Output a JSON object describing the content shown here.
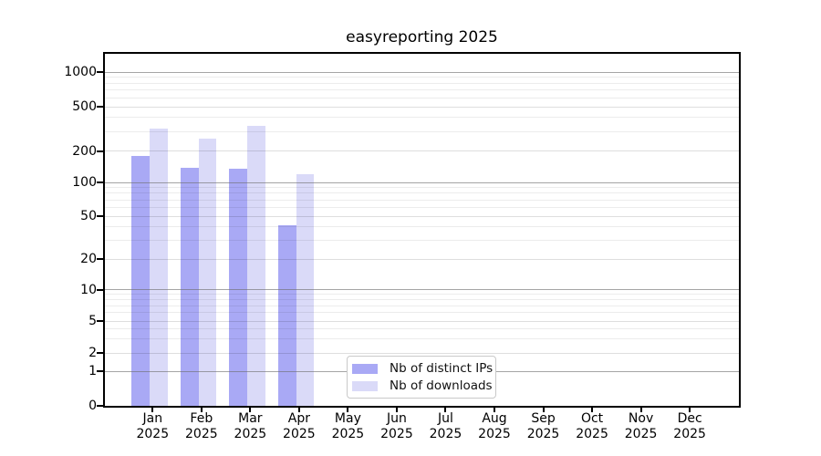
{
  "window": {
    "title": "easyreporting 2025"
  },
  "chart_data": {
    "type": "bar",
    "title": "easyreporting 2025",
    "subtitle": "",
    "xlabel": "",
    "ylabel": "",
    "scale": "log-like (compressed near zero)",
    "grid": true,
    "legend_position": "inside-bottom-center",
    "ylim": [
      0,
      1400
    ],
    "y_ticks": [
      0,
      1,
      2,
      5,
      10,
      20,
      50,
      100,
      200,
      500,
      1000
    ],
    "categories": [
      {
        "month": "Jan",
        "year": "2025"
      },
      {
        "month": "Feb",
        "year": "2025"
      },
      {
        "month": "Mar",
        "year": "2025"
      },
      {
        "month": "Apr",
        "year": "2025"
      },
      {
        "month": "May",
        "year": "2025"
      },
      {
        "month": "Jun",
        "year": "2025"
      },
      {
        "month": "Jul",
        "year": "2025"
      },
      {
        "month": "Aug",
        "year": "2025"
      },
      {
        "month": "Sep",
        "year": "2025"
      },
      {
        "month": "Oct",
        "year": "2025"
      },
      {
        "month": "Nov",
        "year": "2025"
      },
      {
        "month": "Dec",
        "year": "2025"
      }
    ],
    "series": [
      {
        "name": "Nb of distinct IPs",
        "color": "#a9a9f5",
        "values": [
          180,
          138,
          135,
          41,
          null,
          null,
          null,
          null,
          null,
          null,
          null,
          null
        ]
      },
      {
        "name": "Nb of downloads",
        "color": "#dadaf8",
        "values": [
          315,
          260,
          335,
          120,
          null,
          null,
          null,
          null,
          null,
          null,
          null,
          null
        ]
      }
    ]
  },
  "colors": {
    "bar_distinct_ips": "#a9a9f5",
    "bar_downloads": "#dadaf8",
    "axis": "#000000",
    "grid_major": "#6e6e6e",
    "grid_minor": "#e9e9e9",
    "background": "#ffffff",
    "legend_border": "#c9c9c9"
  }
}
